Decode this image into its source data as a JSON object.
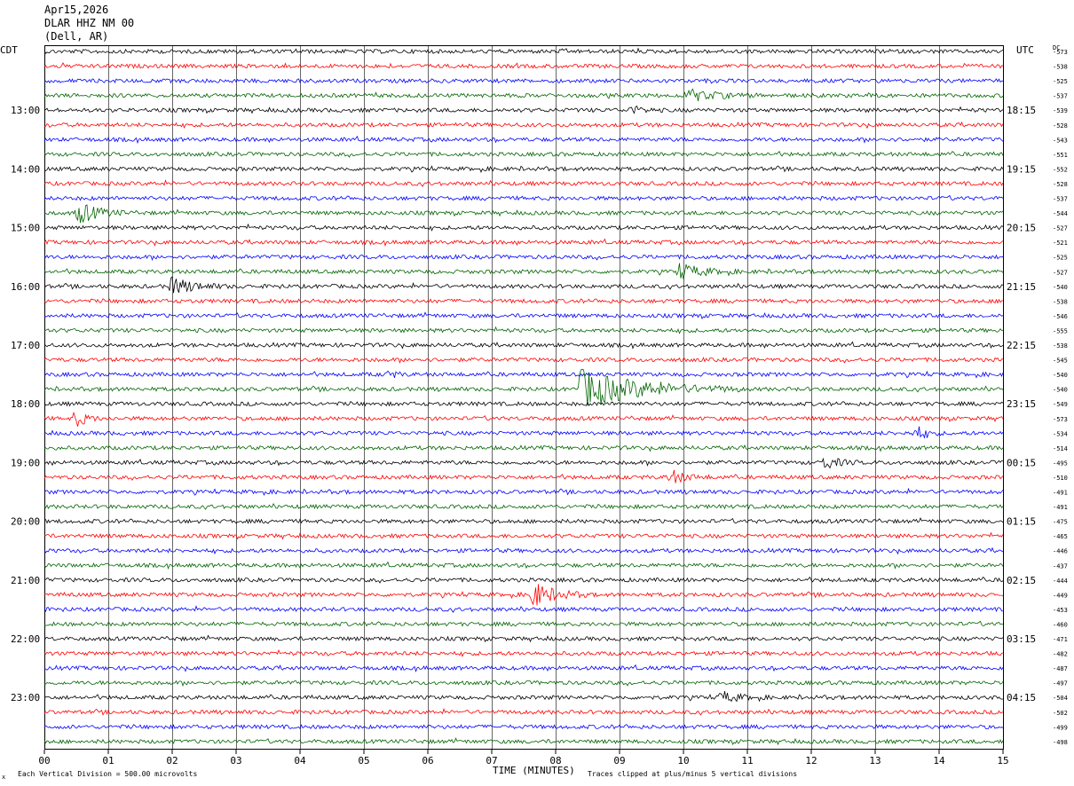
{
  "header": {
    "date": "Apr15,2026",
    "station": "DLAR HHZ NM 00",
    "location": "(Dell, AR)"
  },
  "labels": {
    "left_tz": "CDT",
    "right_tz": "UTC",
    "dc_header": "DC",
    "x_axis_title": "TIME (MINUTES)",
    "footer_left": "Each Vertical Division =  500.00 microvolts",
    "footer_right": "Traces clipped at plus/minus 5 vertical divisions",
    "corner_mark": "x"
  },
  "colors": {
    "trace_cycle": [
      "#000000",
      "#ff0000",
      "#0000ff",
      "#006400"
    ],
    "grid": "#000000"
  },
  "chart_data": {
    "type": "line",
    "title": "DLAR HHZ NM 00",
    "xlabel": "TIME (MINUTES)",
    "x_ticks": [
      "00",
      "01",
      "02",
      "03",
      "04",
      "05",
      "06",
      "07",
      "08",
      "09",
      "10",
      "11",
      "12",
      "13",
      "14",
      "15"
    ],
    "xlim": [
      0,
      15
    ],
    "left_hour_labels": [
      "13:00",
      "14:00",
      "15:00",
      "16:00",
      "17:00",
      "18:00",
      "19:00",
      "20:00",
      "21:00",
      "22:00",
      "23:00"
    ],
    "right_hour_labels": [
      "18:15",
      "19:15",
      "20:15",
      "21:15",
      "22:15",
      "23:15",
      "00:15",
      "01:15",
      "02:15",
      "03:15",
      "04:15"
    ],
    "hour_label_first_trace_index": 4,
    "traces_per_hour": 4,
    "dc_offsets": [
      "-573",
      "-538",
      "-525",
      "-537",
      "-539",
      "-528",
      "-543",
      "-551",
      "-552",
      "-528",
      "-537",
      "-544",
      "-527",
      "-521",
      "-525",
      "-527",
      "-540",
      "-538",
      "-546",
      "-555",
      "-538",
      "-545",
      "-540",
      "-540",
      "-549",
      "-573",
      "-534",
      "-514",
      "-495",
      "-510",
      "-491",
      "-491",
      "-475",
      "-465",
      "-446",
      "-437",
      "-444",
      "-449",
      "-453",
      "-460",
      "-471",
      "-482",
      "-487",
      "-497",
      "-504",
      "-502",
      "-499",
      "-498"
    ],
    "events": [
      {
        "trace": 3,
        "minute": 10.1,
        "amp": 6,
        "dur": 1.2
      },
      {
        "trace": 4,
        "minute": 9.2,
        "amp": 4,
        "dur": 0.5
      },
      {
        "trace": 11,
        "minute": 0.55,
        "amp": 12,
        "dur": 0.8
      },
      {
        "trace": 15,
        "minute": 9.95,
        "amp": 9,
        "dur": 0.9
      },
      {
        "trace": 16,
        "minute": 2.0,
        "amp": 10,
        "dur": 0.9
      },
      {
        "trace": 22,
        "minute": 5.4,
        "amp": 4,
        "dur": 0.3
      },
      {
        "trace": 23,
        "minute": 8.4,
        "amp": 22,
        "dur": 2.5
      },
      {
        "trace": 25,
        "minute": 0.5,
        "amp": 10,
        "dur": 0.4
      },
      {
        "trace": 26,
        "minute": 13.65,
        "amp": 8,
        "dur": 0.4
      },
      {
        "trace": 28,
        "minute": 12.2,
        "amp": 7,
        "dur": 0.6
      },
      {
        "trace": 29,
        "minute": 9.8,
        "amp": 8,
        "dur": 0.6
      },
      {
        "trace": 37,
        "minute": 7.65,
        "amp": 14,
        "dur": 0.9
      },
      {
        "trace": 44,
        "minute": 10.6,
        "amp": 6,
        "dur": 0.7
      }
    ]
  }
}
